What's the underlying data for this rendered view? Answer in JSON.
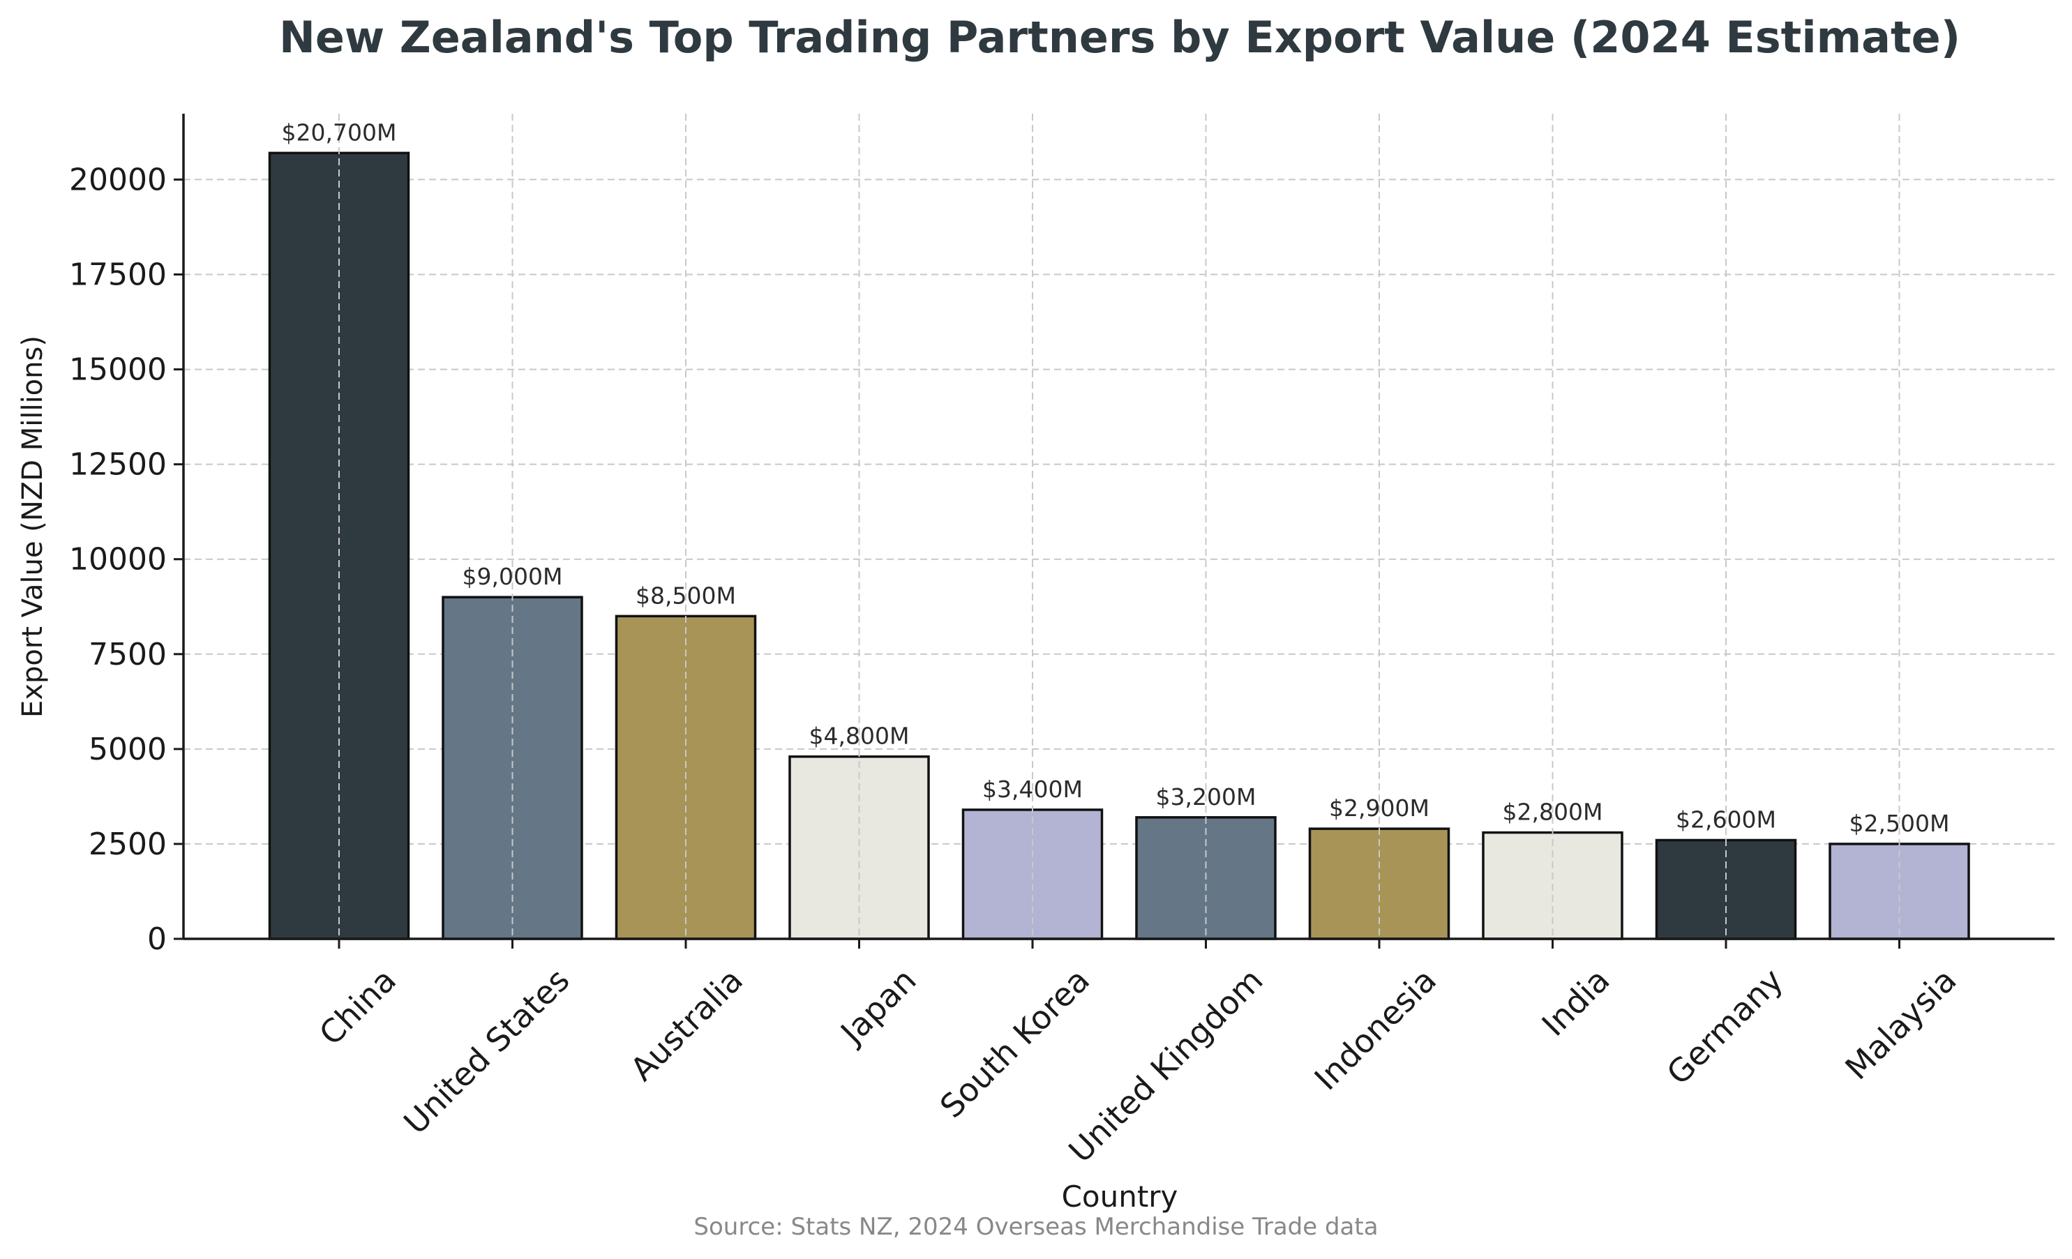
{
  "chart_data": {
    "type": "bar",
    "title": "New Zealand's Top Trading Partners by Export Value (2024 Estimate)",
    "xlabel": "Country",
    "ylabel": "Export Value (NZD Millions)",
    "source": "Source: Stats NZ, 2024 Overseas Merchandise Trade data",
    "categories": [
      "China",
      "United States",
      "Australia",
      "Japan",
      "South Korea",
      "United Kingdom",
      "Indonesia",
      "India",
      "Germany",
      "Malaysia"
    ],
    "values": [
      20700,
      9000,
      8500,
      4800,
      3400,
      3200,
      2900,
      2800,
      2600,
      2500
    ],
    "data_labels": [
      "$20,700M",
      "$9,000M",
      "$8,500M",
      "$4,800M",
      "$3,400M",
      "$3,200M",
      "$2,900M",
      "$2,800M",
      "$2,600M",
      "$2,500M"
    ],
    "bar_colors": [
      "#2f3a40",
      "#657686",
      "#a89457",
      "#e8e8e0",
      "#b3b3d3",
      "#657686",
      "#a89457",
      "#e8e8e0",
      "#2f3a40",
      "#b3b3d3"
    ],
    "yticks": [
      0,
      2500,
      5000,
      7500,
      10000,
      12500,
      15000,
      17500,
      20000
    ],
    "ylim": [
      0,
      21735
    ],
    "grid": true,
    "title_color": "#2f3a40",
    "source_color": "#888888"
  }
}
